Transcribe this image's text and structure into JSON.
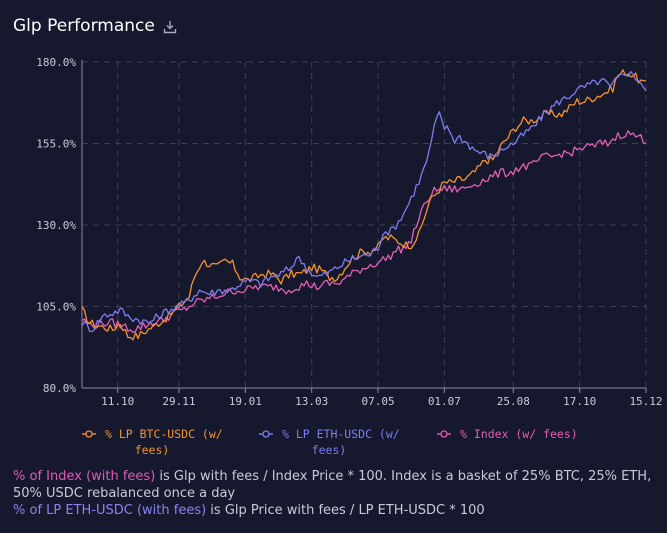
{
  "header": {
    "title": "Glp Performance",
    "download_icon": "download-icon"
  },
  "colors": {
    "background": "#16182e",
    "btc": "#f5922f",
    "eth": "#7f7cf0",
    "index": "#e35fb4",
    "grid": "#3b3e55",
    "axis_text": "#c9cbd6"
  },
  "chart_data": {
    "type": "line",
    "title": "Glp Performance",
    "xlabel": "",
    "ylabel": "",
    "ylim": [
      80,
      180
    ],
    "y_ticks": [
      "80.0%",
      "105.0%",
      "130.0%",
      "155.0%",
      "180.0%"
    ],
    "x_ticks": [
      "11.10",
      "29.11",
      "19.01",
      "13.03",
      "07.05",
      "01.07",
      "25.08",
      "17.10",
      "15.12"
    ],
    "x_tick_index": [
      14,
      38,
      64,
      90,
      116,
      142,
      169,
      195,
      221
    ],
    "grid": true,
    "legend_position": "bottom",
    "x_points": 222,
    "series": [
      {
        "name": "% LP BTC-USDC (w/ fees)",
        "color": "#f5922f",
        "keypoints": [
          [
            0,
            104
          ],
          [
            3,
            100
          ],
          [
            7,
            99
          ],
          [
            12,
            98
          ],
          [
            15,
            100
          ],
          [
            18,
            96
          ],
          [
            22,
            96
          ],
          [
            26,
            98
          ],
          [
            30,
            100
          ],
          [
            34,
            102
          ],
          [
            38,
            105
          ],
          [
            42,
            108
          ],
          [
            44,
            114
          ],
          [
            47,
            119
          ],
          [
            50,
            118
          ],
          [
            53,
            117
          ],
          [
            56,
            119
          ],
          [
            59,
            118
          ],
          [
            62,
            114
          ],
          [
            65,
            113
          ],
          [
            68,
            114
          ],
          [
            71,
            115
          ],
          [
            74,
            115
          ],
          [
            76,
            114
          ],
          [
            78,
            113
          ],
          [
            82,
            115
          ],
          [
            86,
            115
          ],
          [
            90,
            117
          ],
          [
            94,
            116
          ],
          [
            97,
            114
          ],
          [
            100,
            114
          ],
          [
            103,
            117
          ],
          [
            106,
            120
          ],
          [
            110,
            122
          ],
          [
            113,
            122
          ],
          [
            116,
            123
          ],
          [
            118,
            126
          ],
          [
            121,
            126
          ],
          [
            124,
            125
          ],
          [
            127,
            124
          ],
          [
            129,
            124
          ],
          [
            132,
            127
          ],
          [
            134,
            132
          ],
          [
            136,
            137
          ],
          [
            139,
            140
          ],
          [
            142,
            143
          ],
          [
            145,
            143
          ],
          [
            148,
            144
          ],
          [
            150,
            144
          ],
          [
            152,
            145
          ],
          [
            155,
            147
          ],
          [
            158,
            150
          ],
          [
            161,
            150
          ],
          [
            164,
            154
          ],
          [
            167,
            157
          ],
          [
            170,
            160
          ],
          [
            173,
            162
          ],
          [
            176,
            162
          ],
          [
            179,
            163
          ],
          [
            182,
            164
          ],
          [
            185,
            164
          ],
          [
            188,
            164
          ],
          [
            191,
            166
          ],
          [
            194,
            168
          ],
          [
            197,
            168
          ],
          [
            200,
            169
          ],
          [
            203,
            170
          ],
          [
            206,
            171
          ],
          [
            208,
            172
          ],
          [
            210,
            176
          ],
          [
            213,
            177
          ],
          [
            216,
            176
          ],
          [
            219,
            174
          ],
          [
            221,
            173
          ]
        ]
      },
      {
        "name": "% LP ETH-USDC (w/ fees)",
        "color": "#7f7cf0",
        "keypoints": [
          [
            0,
            100
          ],
          [
            4,
            98
          ],
          [
            8,
            102
          ],
          [
            12,
            103
          ],
          [
            15,
            104
          ],
          [
            18,
            102
          ],
          [
            22,
            101
          ],
          [
            26,
            100
          ],
          [
            30,
            102
          ],
          [
            34,
            104
          ],
          [
            38,
            105
          ],
          [
            42,
            107
          ],
          [
            46,
            110
          ],
          [
            50,
            109
          ],
          [
            54,
            110
          ],
          [
            58,
            110
          ],
          [
            62,
            112
          ],
          [
            66,
            113
          ],
          [
            70,
            112
          ],
          [
            74,
            114
          ],
          [
            78,
            115
          ],
          [
            82,
            117
          ],
          [
            84,
            120
          ],
          [
            86,
            119
          ],
          [
            89,
            116
          ],
          [
            92,
            114
          ],
          [
            96,
            115
          ],
          [
            100,
            117
          ],
          [
            104,
            119
          ],
          [
            108,
            120
          ],
          [
            111,
            121
          ],
          [
            113,
            121
          ],
          [
            116,
            123
          ],
          [
            118,
            128
          ],
          [
            121,
            128
          ],
          [
            124,
            131
          ],
          [
            127,
            135
          ],
          [
            130,
            140
          ],
          [
            133,
            145
          ],
          [
            136,
            152
          ],
          [
            138,
            160
          ],
          [
            140,
            164
          ],
          [
            142,
            160
          ],
          [
            144,
            159
          ],
          [
            146,
            156
          ],
          [
            148,
            157
          ],
          [
            151,
            155
          ],
          [
            154,
            153
          ],
          [
            157,
            152
          ],
          [
            160,
            151
          ],
          [
            163,
            152
          ],
          [
            166,
            154
          ],
          [
            169,
            155
          ],
          [
            172,
            157
          ],
          [
            175,
            159
          ],
          [
            178,
            161
          ],
          [
            181,
            164
          ],
          [
            184,
            166
          ],
          [
            187,
            168
          ],
          [
            190,
            169
          ],
          [
            193,
            171
          ],
          [
            196,
            172
          ],
          [
            199,
            173
          ],
          [
            202,
            174
          ],
          [
            205,
            174
          ],
          [
            207,
            172
          ],
          [
            210,
            175
          ],
          [
            213,
            177
          ],
          [
            216,
            176
          ],
          [
            219,
            174
          ],
          [
            221,
            171
          ]
        ]
      },
      {
        "name": "% Index (w/ fees)",
        "color": "#e35fb4",
        "keypoints": [
          [
            0,
            101
          ],
          [
            4,
            99
          ],
          [
            8,
            100
          ],
          [
            12,
            100
          ],
          [
            16,
            99
          ],
          [
            20,
            98
          ],
          [
            24,
            99
          ],
          [
            28,
            100
          ],
          [
            32,
            101
          ],
          [
            36,
            103
          ],
          [
            40,
            104
          ],
          [
            44,
            106
          ],
          [
            48,
            107
          ],
          [
            52,
            108
          ],
          [
            56,
            109
          ],
          [
            60,
            110
          ],
          [
            64,
            110
          ],
          [
            68,
            111
          ],
          [
            72,
            111
          ],
          [
            76,
            111
          ],
          [
            80,
            110
          ],
          [
            84,
            111
          ],
          [
            88,
            112
          ],
          [
            92,
            111
          ],
          [
            96,
            112
          ],
          [
            100,
            112
          ],
          [
            104,
            114
          ],
          [
            108,
            116
          ],
          [
            111,
            117
          ],
          [
            114,
            118
          ],
          [
            117,
            119
          ],
          [
            120,
            120
          ],
          [
            123,
            122
          ],
          [
            126,
            123
          ],
          [
            129,
            125
          ],
          [
            131,
            130
          ],
          [
            133,
            134
          ],
          [
            135,
            137
          ],
          [
            137,
            140
          ],
          [
            140,
            141
          ],
          [
            143,
            141
          ],
          [
            146,
            141
          ],
          [
            149,
            141
          ],
          [
            152,
            142
          ],
          [
            155,
            143
          ],
          [
            158,
            144
          ],
          [
            161,
            145
          ],
          [
            164,
            146
          ],
          [
            167,
            146
          ],
          [
            170,
            147
          ],
          [
            173,
            148
          ],
          [
            176,
            148
          ],
          [
            179,
            150
          ],
          [
            182,
            151
          ],
          [
            185,
            151
          ],
          [
            188,
            152
          ],
          [
            191,
            152
          ],
          [
            194,
            153
          ],
          [
            197,
            154
          ],
          [
            200,
            154
          ],
          [
            203,
            155
          ],
          [
            206,
            155
          ],
          [
            209,
            157
          ],
          [
            212,
            158
          ],
          [
            215,
            158
          ],
          [
            218,
            157
          ],
          [
            221,
            156
          ]
        ]
      }
    ]
  },
  "legend": {
    "btc_line1": "% LP BTC-USDC (w/",
    "btc_line2": "fees)",
    "eth_line1": "% LP ETH-USDC (w/",
    "eth_line2": "fees)",
    "index_line1": "% Index (w/ fees)"
  },
  "notes": {
    "index_highlight": "% of Index (with fees)",
    "index_text": " is Glp with fees / Index Price * 100. Index is a basket of 25% BTC, 25% ETH, 50% USDC rebalanced once a day",
    "eth_highlight": "% of LP ETH-USDC (with fees)",
    "eth_text": " is Glp Price with fees / LP ETH-USDC * 100"
  }
}
